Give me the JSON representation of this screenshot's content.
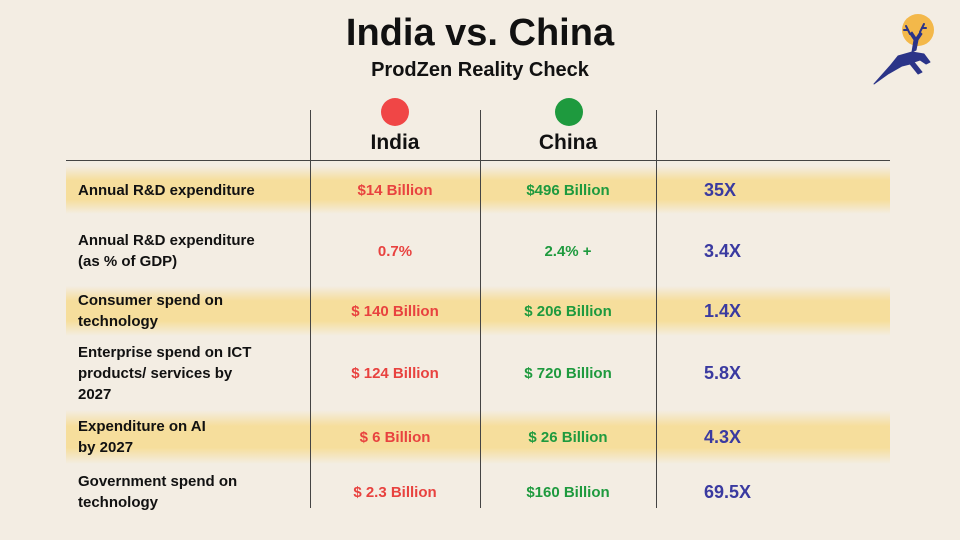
{
  "title": "India vs. China",
  "subtitle": "ProdZen Reality Check",
  "logo": {
    "icon": "leaping-deer-icon",
    "sun_color": "#f3b84a",
    "deer_color": "#2b3488"
  },
  "columns": {
    "india": {
      "label": "India",
      "dot_color": "#f04646"
    },
    "china": {
      "label": "China",
      "dot_color": "#1e9a3e"
    }
  },
  "rows": [
    {
      "metric": "Annual R&D expenditure",
      "india": "$14 Billion",
      "china": "$496 Billion",
      "ratio": "35X"
    },
    {
      "metric": "Annual R&D expenditure\n(as % of GDP)",
      "india": "0.7%",
      "china": "2.4% +",
      "ratio": "3.4X"
    },
    {
      "metric": "Consumer spend on\ntechnology",
      "india": "$ 140 Billion",
      "china": "$ 206 Billion",
      "ratio": "1.4X"
    },
    {
      "metric": "Enterprise spend on ICT\nproducts/ services by\n2027",
      "india": "$ 124 Billion",
      "china": "$ 720 Billion",
      "ratio": "5.8X"
    },
    {
      "metric": "Expenditure on AI\nby 2027",
      "india": "$ 6 Billion",
      "china": "$ 26 Billion",
      "ratio": "4.3X"
    },
    {
      "metric": "Government spend on\ntechnology",
      "india": "$ 2.3 Billion",
      "china": "$160 Billion",
      "ratio": "69.5X"
    }
  ]
}
